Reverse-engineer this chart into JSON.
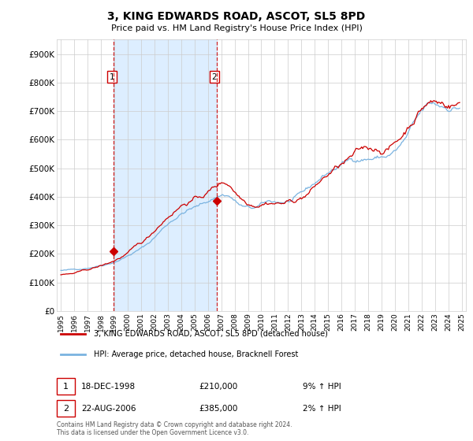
{
  "title": "3, KING EDWARDS ROAD, ASCOT, SL5 8PD",
  "subtitle": "Price paid vs. HM Land Registry's House Price Index (HPI)",
  "legend_line1": "3, KING EDWARDS ROAD, ASCOT, SL5 8PD (detached house)",
  "legend_line2": "HPI: Average price, detached house, Bracknell Forest",
  "transaction1_label": "1",
  "transaction1_date": "18-DEC-1998",
  "transaction1_price": "£210,000",
  "transaction1_hpi": "9% ↑ HPI",
  "transaction2_label": "2",
  "transaction2_date": "22-AUG-2006",
  "transaction2_price": "£385,000",
  "transaction2_hpi": "2% ↑ HPI",
  "footer": "Contains HM Land Registry data © Crown copyright and database right 2024.\nThis data is licensed under the Open Government Licence v3.0.",
  "hpi_color": "#7ab3e0",
  "price_color": "#cc0000",
  "marker_color": "#cc0000",
  "dashed_color": "#cc0000",
  "shade_color": "#ddeeff",
  "background_color": "#ffffff",
  "grid_color": "#cccccc",
  "ylim": [
    0,
    950000
  ],
  "yticks": [
    0,
    100000,
    200000,
    300000,
    400000,
    500000,
    600000,
    700000,
    800000,
    900000
  ],
  "ytick_labels": [
    "£0",
    "£100K",
    "£200K",
    "£300K",
    "£400K",
    "£500K",
    "£600K",
    "£700K",
    "£800K",
    "£900K"
  ],
  "transaction1_x": 1998.96,
  "transaction1_y": 210000,
  "transaction2_x": 2006.64,
  "transaction2_y": 385000,
  "xlim": [
    1994.7,
    2025.3
  ],
  "xtick_years": [
    1995,
    1996,
    1997,
    1998,
    1999,
    2000,
    2001,
    2002,
    2003,
    2004,
    2005,
    2006,
    2007,
    2008,
    2009,
    2010,
    2011,
    2012,
    2013,
    2014,
    2015,
    2016,
    2017,
    2018,
    2019,
    2020,
    2021,
    2022,
    2023,
    2024,
    2025
  ]
}
